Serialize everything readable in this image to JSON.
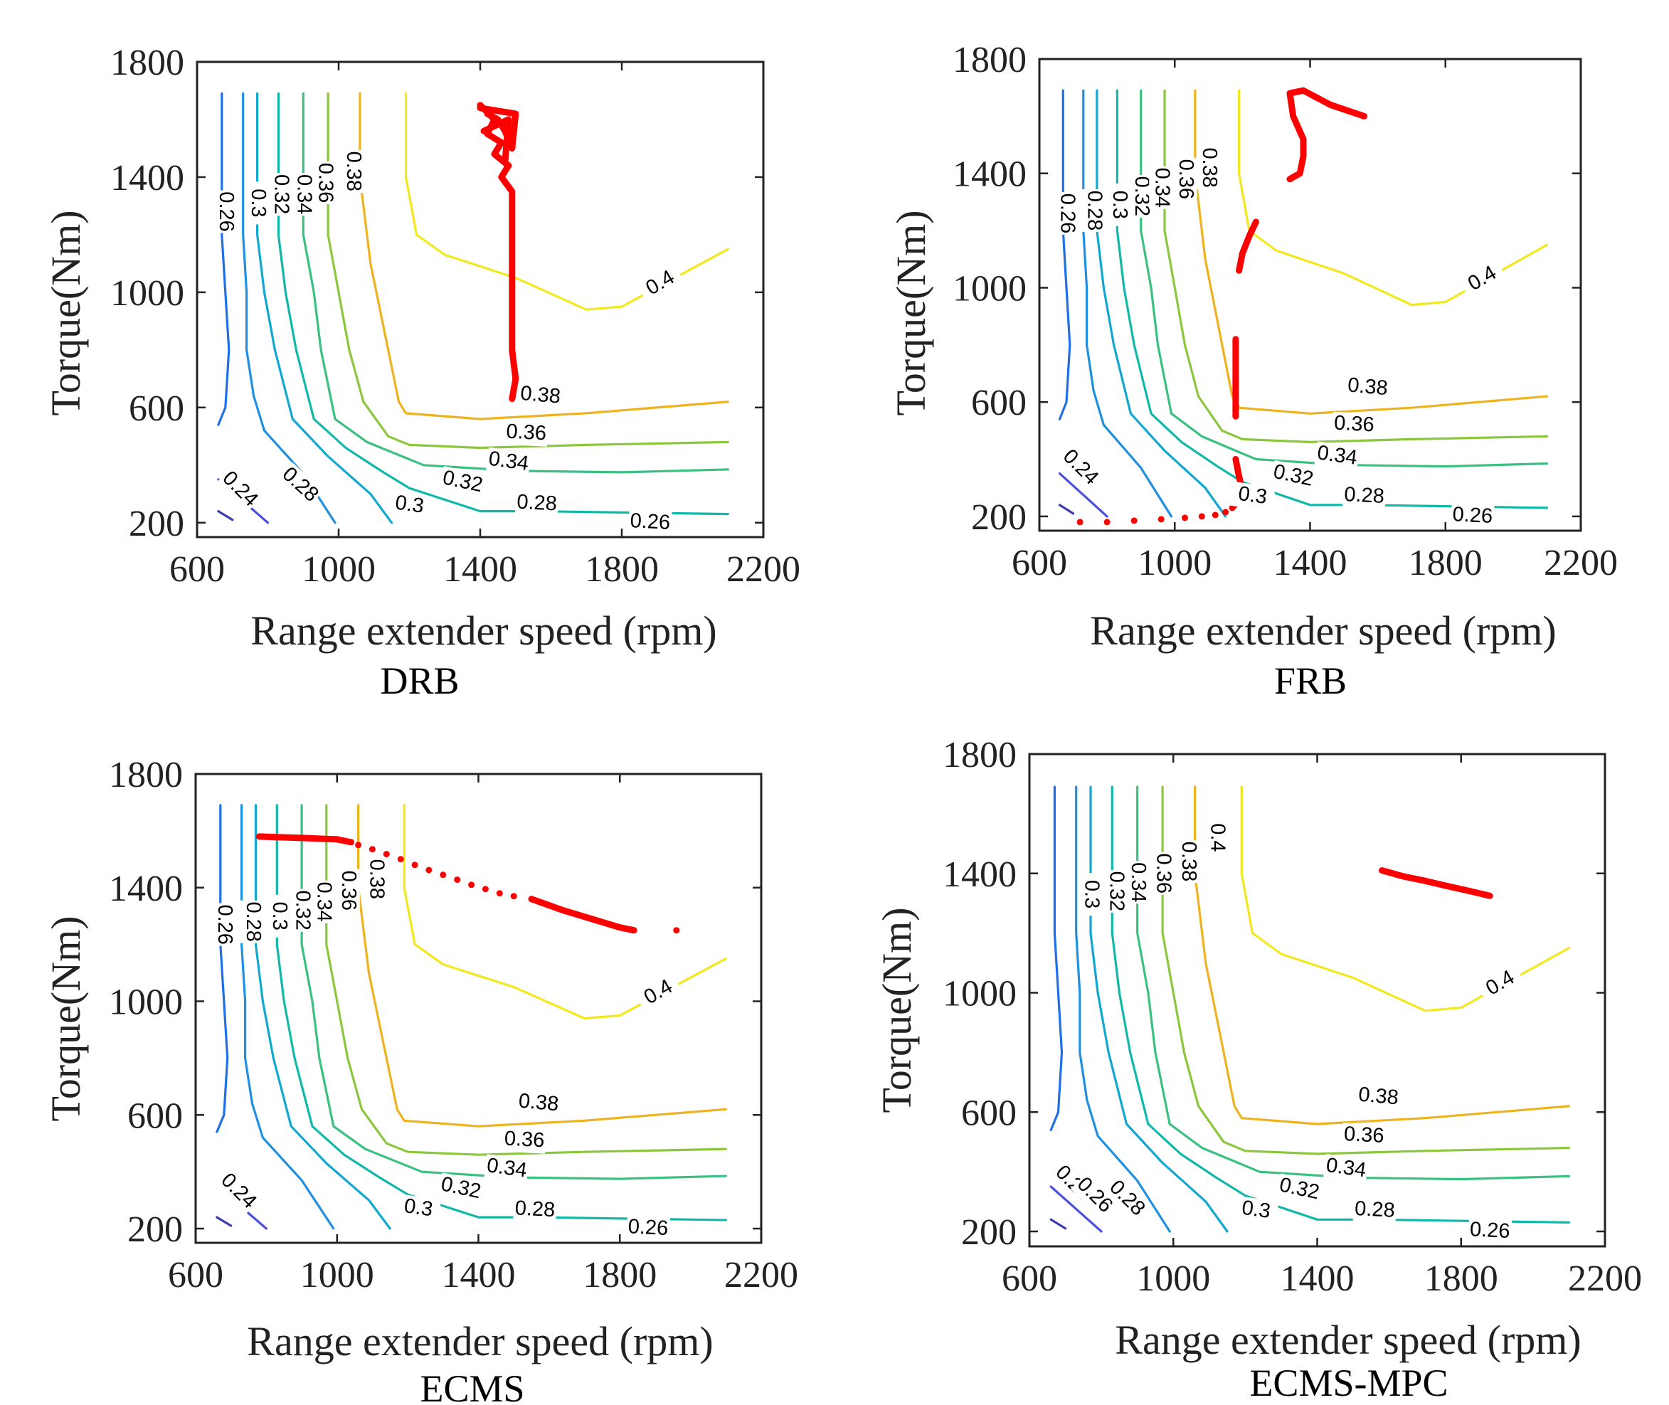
{
  "figure": {
    "type": "contour",
    "description_title": "Range extender operating points on efficiency map"
  },
  "chart_data": [
    {
      "type": "contour",
      "caption": "DRB",
      "xlabel": "Range extender speed (rpm)",
      "ylabel": "Torque(Nm)",
      "xlim": [
        600,
        2200
      ],
      "ylim": [
        150,
        1800
      ],
      "xticks": [
        600,
        1000,
        1400,
        1800,
        2200
      ],
      "yticks": [
        200,
        600,
        1000,
        1400,
        1800
      ],
      "contour_levels": [
        0.22,
        0.24,
        0.26,
        0.28,
        0.3,
        0.32,
        0.34,
        0.36,
        0.38,
        0.4
      ],
      "contour_labels": [
        {
          "text": "0.26",
          "x": 680,
          "y": 1280,
          "rot": 90
        },
        {
          "text": "0.3",
          "x": 770,
          "y": 1310,
          "rot": 90
        },
        {
          "text": "0.32",
          "x": 835,
          "y": 1340,
          "rot": 90
        },
        {
          "text": "0.34",
          "x": 900,
          "y": 1340,
          "rot": 90
        },
        {
          "text": "0.36",
          "x": 960,
          "y": 1380,
          "rot": 90
        },
        {
          "text": "0.38",
          "x": 1040,
          "y": 1420,
          "rot": 90
        },
        {
          "text": "0.4",
          "x": 1910,
          "y": 1030,
          "rot": -30
        },
        {
          "text": "0.38",
          "x": 1570,
          "y": 640,
          "rot": 5
        },
        {
          "text": "0.36",
          "x": 1530,
          "y": 510,
          "rot": 3
        },
        {
          "text": "0.34",
          "x": 1480,
          "y": 410,
          "rot": 8
        },
        {
          "text": "0.32",
          "x": 1350,
          "y": 340,
          "rot": 12
        },
        {
          "text": "0.3",
          "x": 1200,
          "y": 260,
          "rot": 8
        },
        {
          "text": "0.28",
          "x": 1560,
          "y": 265,
          "rot": 3
        },
        {
          "text": "0.26",
          "x": 1880,
          "y": 200,
          "rot": 3
        },
        {
          "text": "0.24",
          "x": 720,
          "y": 315,
          "rot": 45
        },
        {
          "text": "0.28",
          "x": 890,
          "y": 330,
          "rot": 42
        }
      ],
      "operating_points": {
        "color": "#ff0000",
        "paths": [
          [
            [
              1400,
              1650
            ],
            [
              1440,
              1600
            ],
            [
              1420,
              1550
            ],
            [
              1460,
              1520
            ],
            [
              1440,
              1480
            ],
            [
              1480,
              1440
            ],
            [
              1460,
              1400
            ],
            [
              1490,
              1350
            ],
            [
              1490,
              1200
            ],
            [
              1490,
              1000
            ],
            [
              1490,
              800
            ],
            [
              1500,
              700
            ],
            [
              1490,
              630
            ]
          ],
          [
            [
              1400,
              1640
            ],
            [
              1500,
              1620
            ],
            [
              1490,
              1500
            ],
            [
              1470,
              1560
            ],
            [
              1450,
              1600
            ],
            [
              1420,
              1620
            ]
          ],
          [
            [
              1410,
              1560
            ],
            [
              1480,
              1600
            ],
            [
              1470,
              1450
            ]
          ]
        ],
        "dots": []
      }
    },
    {
      "type": "contour",
      "caption": "FRB",
      "xlabel": "Range extender speed (rpm)",
      "ylabel": "Torque(Nm)",
      "xlim": [
        600,
        2200
      ],
      "ylim": [
        150,
        1800
      ],
      "xticks": [
        600,
        1000,
        1400,
        1800,
        2200
      ],
      "yticks": [
        200,
        600,
        1000,
        1400,
        1800
      ],
      "contour_levels": [
        0.22,
        0.24,
        0.26,
        0.28,
        0.3,
        0.32,
        0.34,
        0.36,
        0.38,
        0.4
      ],
      "contour_labels": [
        {
          "text": "0.26",
          "x": 680,
          "y": 1260,
          "rot": 90
        },
        {
          "text": "0.28",
          "x": 760,
          "y": 1270,
          "rot": 90
        },
        {
          "text": "0.3",
          "x": 835,
          "y": 1290,
          "rot": 90
        },
        {
          "text": "0.32",
          "x": 900,
          "y": 1320,
          "rot": 90
        },
        {
          "text": "0.34",
          "x": 960,
          "y": 1350,
          "rot": 90
        },
        {
          "text": "0.36",
          "x": 1030,
          "y": 1380,
          "rot": 90
        },
        {
          "text": "0.38",
          "x": 1100,
          "y": 1420,
          "rot": 90
        },
        {
          "text": "0.4",
          "x": 1910,
          "y": 1030,
          "rot": -30
        },
        {
          "text": "0.38",
          "x": 1570,
          "y": 650,
          "rot": 5
        },
        {
          "text": "0.36",
          "x": 1530,
          "y": 520,
          "rot": 3
        },
        {
          "text": "0.34",
          "x": 1480,
          "y": 410,
          "rot": 8
        },
        {
          "text": "0.32",
          "x": 1350,
          "y": 340,
          "rot": 12
        },
        {
          "text": "0.3",
          "x": 1230,
          "y": 270,
          "rot": 8
        },
        {
          "text": "0.28",
          "x": 1560,
          "y": 270,
          "rot": 3
        },
        {
          "text": "0.26",
          "x": 1880,
          "y": 200,
          "rot": 3
        },
        {
          "text": "0.24",
          "x": 720,
          "y": 370,
          "rot": 45
        }
      ],
      "operating_points": {
        "color": "#ff0000",
        "paths": [
          [
            [
              1560,
              1600
            ],
            [
              1460,
              1640
            ],
            [
              1380,
              1690
            ],
            [
              1340,
              1680
            ],
            [
              1350,
              1600
            ],
            [
              1380,
              1520
            ],
            [
              1380,
              1460
            ],
            [
              1370,
              1400
            ],
            [
              1340,
              1380
            ]
          ],
          [
            [
              1240,
              1230
            ],
            [
              1220,
              1180
            ],
            [
              1200,
              1120
            ],
            [
              1190,
              1060
            ]
          ],
          [
            [
              1180,
              820
            ],
            [
              1180,
              700
            ],
            [
              1180,
              600
            ],
            [
              1180,
              550
            ]
          ],
          [
            [
              1180,
              400
            ],
            [
              1190,
              340
            ],
            [
              1200,
              290
            ],
            [
              1190,
              260
            ],
            [
              1170,
              230
            ]
          ]
        ],
        "dots": [
          [
            720,
            180
          ],
          [
            800,
            180
          ],
          [
            880,
            185
          ],
          [
            960,
            190
          ],
          [
            1030,
            195
          ],
          [
            1080,
            200
          ],
          [
            1120,
            205
          ],
          [
            1150,
            215
          ]
        ]
      }
    },
    {
      "type": "contour",
      "caption": "ECMS",
      "xlabel": "Range extender speed (rpm)",
      "ylabel": "Torque(Nm)",
      "xlim": [
        600,
        2200
      ],
      "ylim": [
        150,
        1800
      ],
      "xticks": [
        600,
        1000,
        1400,
        1800,
        2200
      ],
      "yticks": [
        200,
        600,
        1000,
        1400,
        1800
      ],
      "contour_levels": [
        0.22,
        0.24,
        0.26,
        0.28,
        0.3,
        0.32,
        0.34,
        0.36,
        0.38,
        0.4
      ],
      "contour_labels": [
        {
          "text": "0.26",
          "x": 680,
          "y": 1270,
          "rot": 90
        },
        {
          "text": "0.28",
          "x": 760,
          "y": 1280,
          "rot": 90
        },
        {
          "text": "0.3",
          "x": 835,
          "y": 1300,
          "rot": 90
        },
        {
          "text": "0.32",
          "x": 900,
          "y": 1320,
          "rot": 90
        },
        {
          "text": "0.34",
          "x": 960,
          "y": 1350,
          "rot": 90
        },
        {
          "text": "0.36",
          "x": 1030,
          "y": 1390,
          "rot": 90
        },
        {
          "text": "0.38",
          "x": 1110,
          "y": 1430,
          "rot": 90
        },
        {
          "text": "0.4",
          "x": 1910,
          "y": 1030,
          "rot": -30
        },
        {
          "text": "0.38",
          "x": 1570,
          "y": 640,
          "rot": 5
        },
        {
          "text": "0.36",
          "x": 1530,
          "y": 510,
          "rot": 3
        },
        {
          "text": "0.34",
          "x": 1480,
          "y": 410,
          "rot": 8
        },
        {
          "text": "0.32",
          "x": 1350,
          "y": 340,
          "rot": 12
        },
        {
          "text": "0.3",
          "x": 1230,
          "y": 270,
          "rot": 8
        },
        {
          "text": "0.28",
          "x": 1560,
          "y": 265,
          "rot": 3
        },
        {
          "text": "0.26",
          "x": 1880,
          "y": 200,
          "rot": 3
        },
        {
          "text": "0.24",
          "x": 720,
          "y": 330,
          "rot": 45
        }
      ],
      "operating_points": {
        "color": "#ff0000",
        "paths": [
          [
            [
              780,
              1580
            ],
            [
              900,
              1575
            ],
            [
              1000,
              1570
            ],
            [
              1040,
              1560
            ]
          ],
          [
            [
              1550,
              1360
            ],
            [
              1640,
              1320
            ],
            [
              1720,
              1290
            ],
            [
              1800,
              1260
            ],
            [
              1840,
              1250
            ]
          ]
        ],
        "dots": [
          [
            1060,
            1550
          ],
          [
            1100,
            1535
          ],
          [
            1140,
            1518
          ],
          [
            1180,
            1500
          ],
          [
            1220,
            1480
          ],
          [
            1260,
            1462
          ],
          [
            1300,
            1445
          ],
          [
            1340,
            1428
          ],
          [
            1380,
            1410
          ],
          [
            1420,
            1395
          ],
          [
            1460,
            1380
          ],
          [
            1500,
            1370
          ],
          [
            1960,
            1250
          ]
        ]
      }
    },
    {
      "type": "contour",
      "caption": "ECMS-MPC",
      "xlabel": "Range extender speed (rpm)",
      "ylabel": "Torque(Nm)",
      "xlim": [
        600,
        2200
      ],
      "ylim": [
        150,
        1800
      ],
      "xticks": [
        600,
        1000,
        1400,
        1800,
        2200
      ],
      "yticks": [
        200,
        600,
        1000,
        1400,
        1800
      ],
      "contour_levels": [
        0.22,
        0.24,
        0.26,
        0.28,
        0.3,
        0.32,
        0.34,
        0.36,
        0.38,
        0.4
      ],
      "contour_labels": [
        {
          "text": "0.3",
          "x": 770,
          "y": 1330,
          "rot": 90
        },
        {
          "text": "0.32",
          "x": 840,
          "y": 1340,
          "rot": 90
        },
        {
          "text": "0.34",
          "x": 900,
          "y": 1370,
          "rot": 90
        },
        {
          "text": "0.36",
          "x": 970,
          "y": 1400,
          "rot": 90
        },
        {
          "text": "0.38",
          "x": 1040,
          "y": 1440,
          "rot": 90
        },
        {
          "text": "0.4",
          "x": 1120,
          "y": 1520,
          "rot": 90
        },
        {
          "text": "0.4",
          "x": 1910,
          "y": 1030,
          "rot": -30
        },
        {
          "text": "0.38",
          "x": 1570,
          "y": 650,
          "rot": 5
        },
        {
          "text": "0.36",
          "x": 1530,
          "y": 520,
          "rot": 3
        },
        {
          "text": "0.34",
          "x": 1480,
          "y": 410,
          "rot": 8
        },
        {
          "text": "0.32",
          "x": 1350,
          "y": 340,
          "rot": 12
        },
        {
          "text": "0.3",
          "x": 1230,
          "y": 270,
          "rot": 8
        },
        {
          "text": "0.28",
          "x": 1560,
          "y": 270,
          "rot": 3
        },
        {
          "text": "0.26",
          "x": 1880,
          "y": 200,
          "rot": 3
        },
        {
          "text": "0.24",
          "x": 720,
          "y": 360,
          "rot": 45
        },
        {
          "text": "0.26",
          "x": 780,
          "y": 320,
          "rot": 45
        },
        {
          "text": "0.28",
          "x": 870,
          "y": 310,
          "rot": 45
        }
      ],
      "operating_points": {
        "color": "#ff0000",
        "paths": [
          [
            [
              1580,
              1410
            ],
            [
              1640,
              1390
            ],
            [
              1700,
              1375
            ],
            [
              1760,
              1358
            ],
            [
              1820,
              1342
            ],
            [
              1880,
              1325
            ]
          ]
        ],
        "dots": []
      }
    }
  ]
}
